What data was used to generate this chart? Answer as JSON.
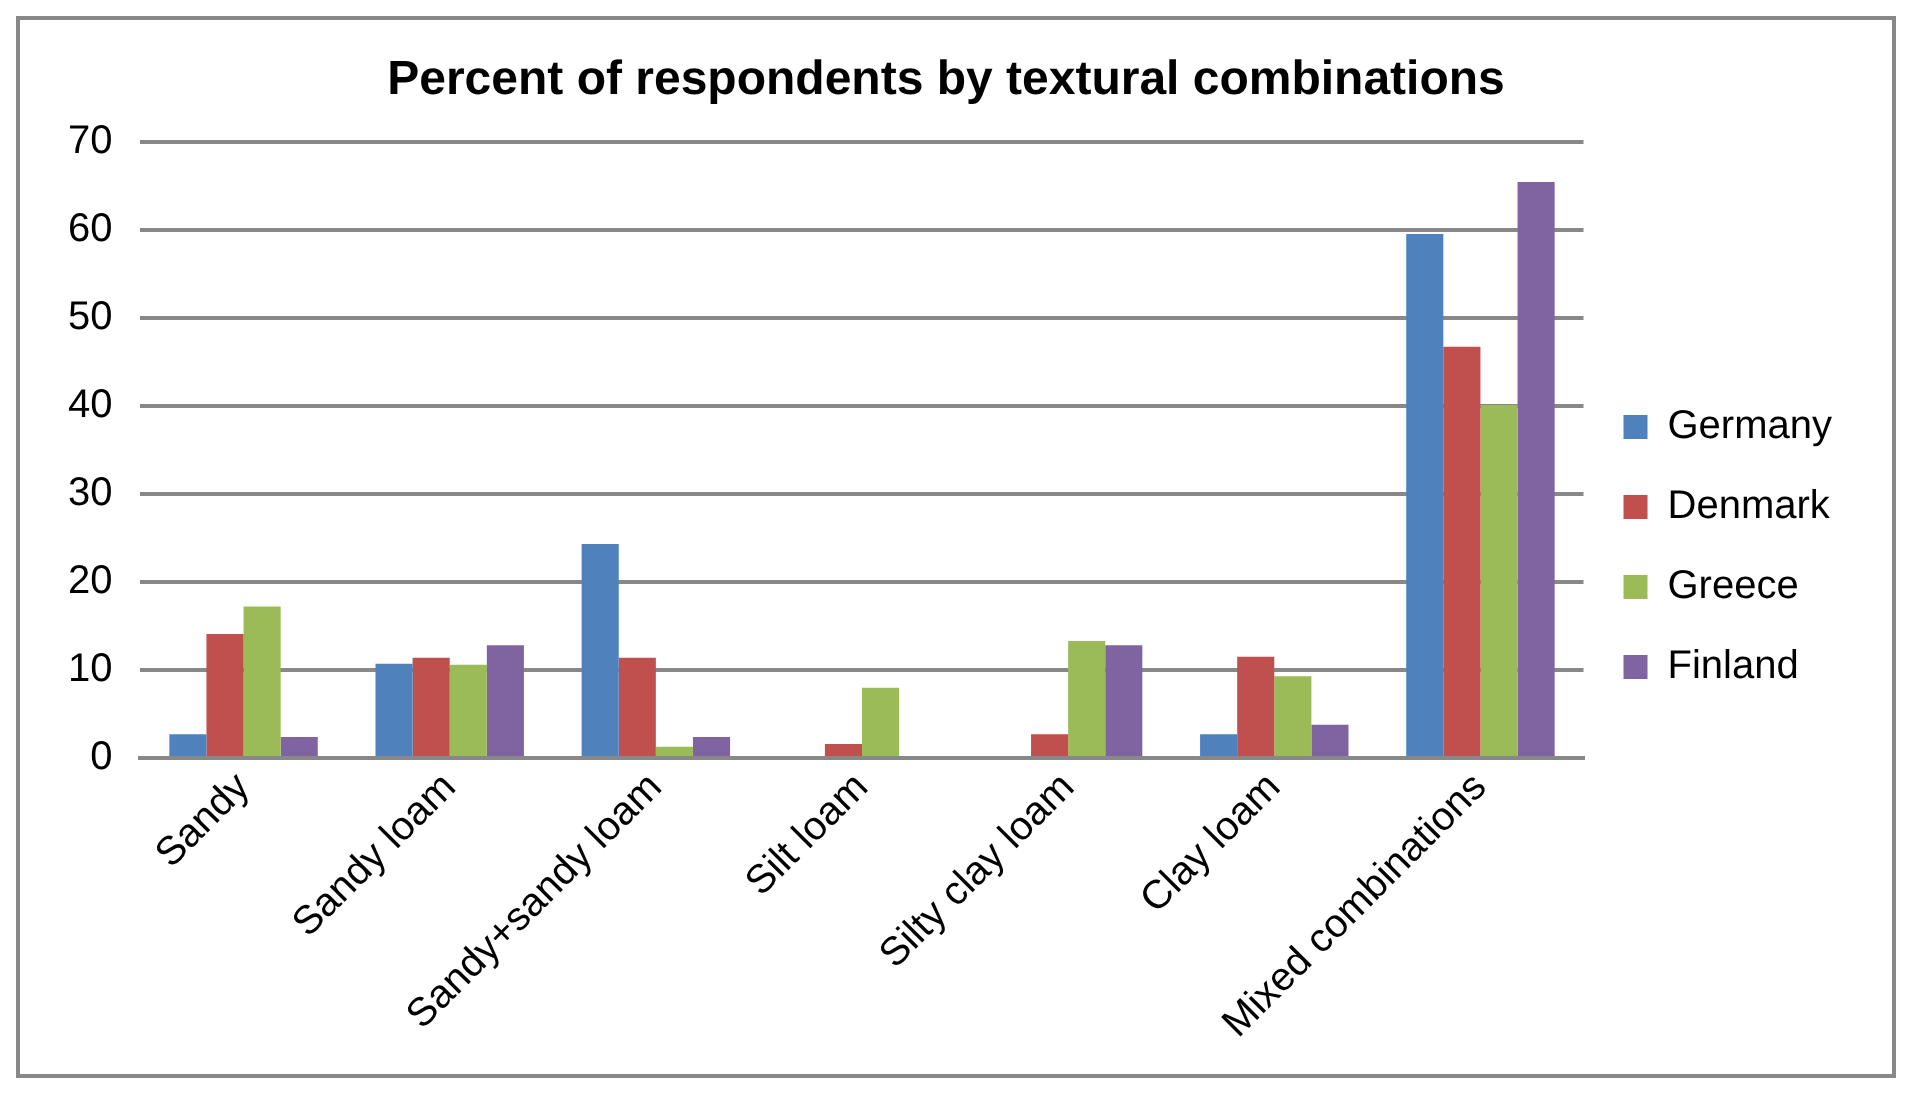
{
  "chart_data": {
    "type": "bar",
    "title": "Percent of respondents by textural combinations",
    "categories": [
      "Sandy",
      "Sandy loam",
      "Sandy+sandy loam",
      "Silt loam",
      "Silty clay loam",
      "Clay loam",
      "Mixed combinations"
    ],
    "series": [
      {
        "name": "Germany",
        "color": "#4f81bd",
        "values": [
          2.7,
          10.7,
          24.3,
          0,
          0,
          2.7,
          59.5
        ]
      },
      {
        "name": "Denmark",
        "color": "#c0504d",
        "values": [
          14.1,
          11.4,
          11.4,
          1.6,
          2.7,
          11.5,
          46.7
        ]
      },
      {
        "name": "Greece",
        "color": "#9bbb59",
        "values": [
          17.2,
          10.6,
          1.3,
          8.0,
          13.3,
          9.3,
          40.1
        ]
      },
      {
        "name": "Finland",
        "color": "#8064a2",
        "values": [
          2.4,
          12.8,
          2.4,
          0,
          12.8,
          3.8,
          65.4
        ]
      }
    ],
    "ylim": [
      0,
      70
    ],
    "yticks": [
      0,
      10,
      20,
      30,
      40,
      50,
      60,
      70
    ],
    "grid": "y",
    "legend": "right"
  }
}
